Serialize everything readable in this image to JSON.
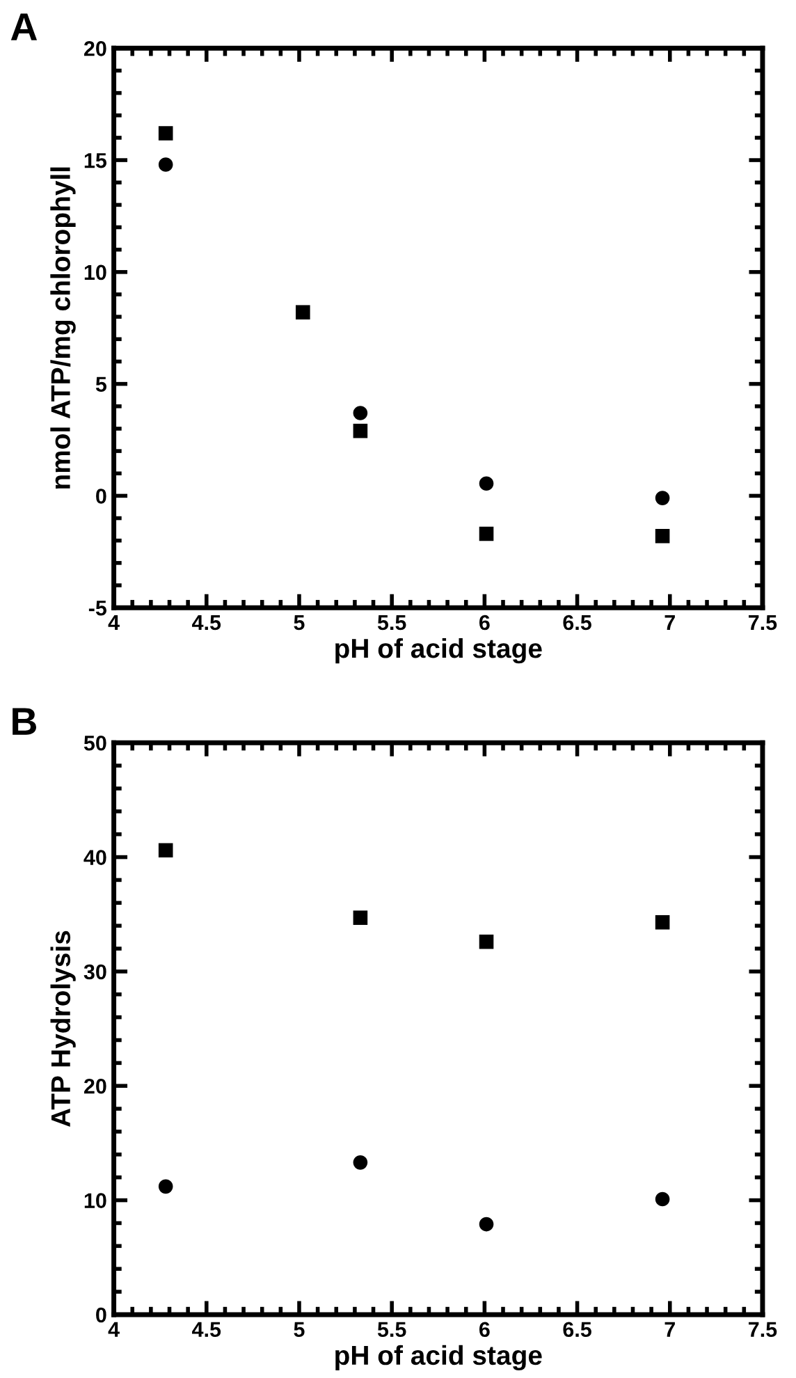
{
  "chart_data": [
    {
      "type": "scatter",
      "title": "A",
      "xlabel": "pH of acid stage",
      "ylabel": "nmol ATP/mg chlorophyll",
      "xlim": [
        4,
        7.5
      ],
      "xticks": [
        4,
        4.5,
        5,
        5.5,
        6,
        6.5,
        7,
        7.5
      ],
      "ylim": [
        -5,
        20
      ],
      "yticks": [
        -5,
        0,
        5,
        10,
        15,
        20
      ],
      "series": [
        {
          "color": "#000000",
          "marker": "square",
          "x": [
            4.28,
            5.02,
            5.33,
            6.01,
            6.96
          ],
          "values": [
            16.2,
            8.2,
            2.9,
            -1.7,
            -1.8
          ]
        },
        {
          "color": "#000000",
          "marker": "circle",
          "x": [
            4.28,
            5.33,
            6.01,
            6.96
          ],
          "values": [
            14.8,
            3.7,
            0.55,
            -0.1
          ]
        }
      ]
    },
    {
      "type": "scatter",
      "title": "B",
      "xlabel": "pH of acid stage",
      "ylabel": "ATP Hydrolysis",
      "xlim": [
        4,
        7.5
      ],
      "xticks": [
        4,
        4.5,
        5,
        5.5,
        6,
        6.5,
        7,
        7.5
      ],
      "ylim": [
        0,
        50
      ],
      "yticks": [
        0,
        10,
        20,
        30,
        40,
        50
      ],
      "series": [
        {
          "color": "#000000",
          "marker": "square",
          "x": [
            4.28,
            5.33,
            6.01,
            6.96
          ],
          "values": [
            40.6,
            34.7,
            32.6,
            34.3
          ]
        },
        {
          "color": "#000000",
          "marker": "circle",
          "x": [
            4.28,
            5.33,
            6.01,
            6.96
          ],
          "values": [
            11.2,
            13.3,
            7.9,
            10.1
          ]
        }
      ]
    }
  ]
}
